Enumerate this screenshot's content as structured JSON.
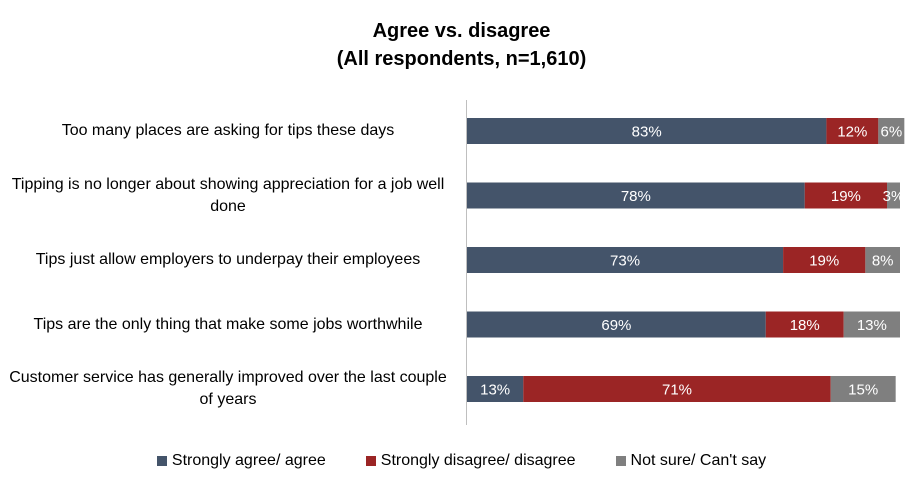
{
  "chart_data": {
    "type": "bar",
    "orientation": "horizontal",
    "stacked": true,
    "title": "Agree vs. disagree",
    "subtitle": "(All respondents,  n=1,610)",
    "categories": [
      "Too many places are asking for tips these days",
      "Tipping is no longer about showing appreciation for a job well done",
      "Tips just allow employers to underpay their employees",
      "Tips are the only thing that make some jobs worthwhile",
      "Customer service has generally improved over the last couple of years"
    ],
    "series": [
      {
        "name": "Strongly agree/ agree",
        "color": "#44546A",
        "values": [
          83,
          78,
          73,
          69,
          13
        ]
      },
      {
        "name": "Strongly disagree/ disagree",
        "color": "#9B2525",
        "values": [
          12,
          19,
          19,
          18,
          71
        ]
      },
      {
        "name": "Not sure/ Can't say",
        "color": "#7F7F7F",
        "values": [
          6,
          3,
          8,
          13,
          15
        ]
      }
    ],
    "value_suffix": "%",
    "xlim": [
      0,
      100
    ],
    "legend_position": "bottom",
    "grid": false
  }
}
